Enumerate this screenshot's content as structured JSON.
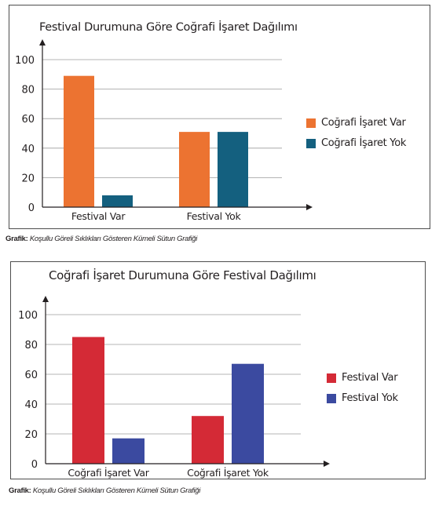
{
  "chart_data": [
    {
      "type": "bar",
      "title": "Festival Durumuna Göre Coğrafi İşaret Dağılımı",
      "categories": [
        "Festival Var",
        "Festival Yok"
      ],
      "series": [
        {
          "name": "Coğrafi İşaret Var",
          "values": [
            89,
            51
          ],
          "color": "#ec7331"
        },
        {
          "name": "Coğrafi İşaret Yok",
          "values": [
            8,
            51
          ],
          "color": "#14607f"
        }
      ],
      "yticks": [
        0,
        20,
        40,
        60,
        80,
        100
      ],
      "ylim": [
        0,
        100
      ],
      "grid": true,
      "legend": "right"
    },
    {
      "type": "bar",
      "title": "Coğrafi İşaret Durumuna Göre Festival Dağılımı",
      "categories": [
        "Coğrafi İşaret Var",
        "Coğrafi İşaret Yok"
      ],
      "series": [
        {
          "name": "Festival Var",
          "values": [
            85,
            32
          ],
          "color": "#d42a36"
        },
        {
          "name": "Festival Yok",
          "values": [
            17,
            67
          ],
          "color": "#3b4aa0"
        }
      ],
      "yticks": [
        0,
        20,
        40,
        60,
        80,
        100
      ],
      "ylim": [
        0,
        100
      ],
      "grid": true,
      "legend": "right"
    }
  ],
  "captions": [
    {
      "label": "Grafik:",
      "text": "Koşullu Göreli Sıklıkları Gösteren Kümeli Sütun Grafiği"
    },
    {
      "label": "Grafik:",
      "text": "Koşullu Göreli Sıklıkları Gösteren Kümeli Sütun Grafiği"
    }
  ]
}
